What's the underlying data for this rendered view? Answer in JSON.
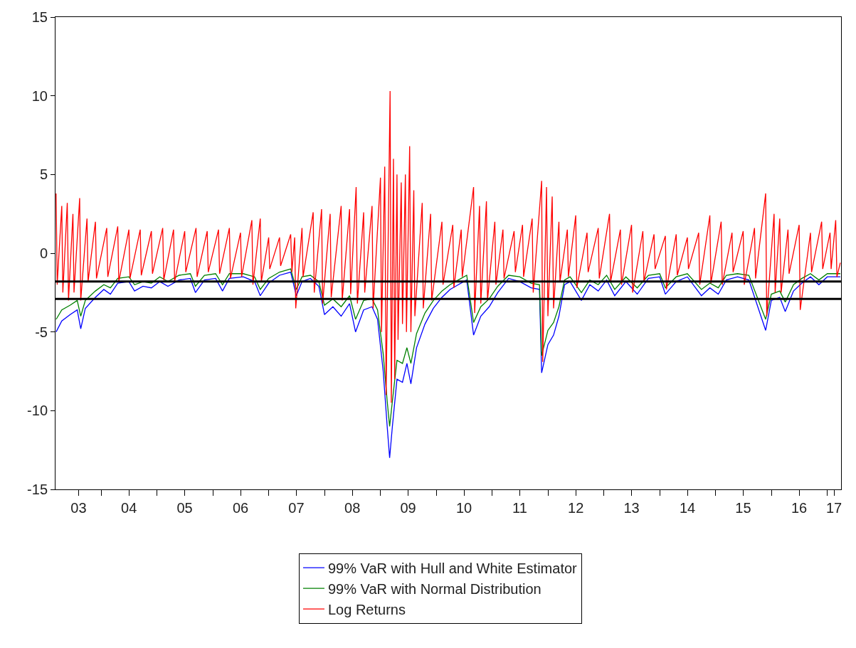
{
  "chart_data": {
    "type": "line",
    "legend": "bottom",
    "grid": false,
    "marker": "none",
    "line_style": "solid",
    "xlim": [
      "2003-03-09",
      "2017-04-01"
    ],
    "xticks": [
      {
        "value": "2003-08-07",
        "label": "03"
      },
      {
        "value": "2004-07-01",
        "label": "04"
      },
      {
        "value": "2005-07-01",
        "label": "05"
      },
      {
        "value": "2006-07-01",
        "label": "06"
      },
      {
        "value": "2007-07-01",
        "label": "07"
      },
      {
        "value": "2008-07-01",
        "label": "08"
      },
      {
        "value": "2009-07-01",
        "label": "09"
      },
      {
        "value": "2010-07-01",
        "label": "10"
      },
      {
        "value": "2011-07-01",
        "label": "11"
      },
      {
        "value": "2012-07-01",
        "label": "12"
      },
      {
        "value": "2013-07-01",
        "label": "13"
      },
      {
        "value": "2014-07-01",
        "label": "14"
      },
      {
        "value": "2015-07-01",
        "label": "15"
      },
      {
        "value": "2016-07-01",
        "label": "16"
      },
      {
        "value": "2017-02-14",
        "label": "17"
      },
      {
        "value": "2004-01-01",
        "label": null
      },
      {
        "value": "2005-01-01",
        "label": null
      },
      {
        "value": "2006-01-01",
        "label": null
      },
      {
        "value": "2007-01-01",
        "label": null
      },
      {
        "value": "2008-01-01",
        "label": null
      },
      {
        "value": "2009-01-01",
        "label": null
      },
      {
        "value": "2010-01-01",
        "label": null
      },
      {
        "value": "2011-01-01",
        "label": null
      },
      {
        "value": "2012-01-01",
        "label": null
      },
      {
        "value": "2013-01-01",
        "label": null
      },
      {
        "value": "2014-01-01",
        "label": null
      },
      {
        "value": "2015-01-01",
        "label": null
      },
      {
        "value": "2016-01-01",
        "label": null
      },
      {
        "value": "2017-01-01",
        "label": null
      }
    ],
    "ylim": [
      -15,
      15
    ],
    "yticks": [
      -15,
      -10,
      -5,
      0,
      5,
      10,
      15
    ],
    "ref_lines": [
      {
        "axis": "y",
        "value": -1.8,
        "color": "#000000"
      },
      {
        "axis": "y",
        "value": -2.9,
        "color": "#000000"
      }
    ],
    "series": [
      {
        "name": "99% VaR with Hull and White Estimator",
        "color": "#0000ff",
        "x": [
          "2003-03-13",
          "2003-04-19",
          "2003-06-13",
          "2003-07-29",
          "2003-08-21",
          "2003-09-20",
          "2003-11-25",
          "2004-01-19",
          "2004-03-02",
          "2004-04-19",
          "2004-07-01",
          "2004-08-07",
          "2004-10-01",
          "2004-11-25",
          "2005-01-19",
          "2005-03-13",
          "2005-05-25",
          "2005-08-07",
          "2005-09-09",
          "2005-11-07",
          "2006-01-19",
          "2006-03-05",
          "2006-04-19",
          "2006-07-19",
          "2006-10-01",
          "2006-11-07",
          "2007-01-01",
          "2007-03-13",
          "2007-05-25",
          "2007-07-01",
          "2007-08-07",
          "2007-10-01",
          "2007-11-25",
          "2008-01-01",
          "2008-02-25",
          "2008-04-19",
          "2008-06-13",
          "2008-07-22",
          "2008-09-13",
          "2008-11-07",
          "2008-12-13",
          "2009-01-19",
          "2009-02-14",
          "2009-03-02",
          "2009-03-20",
          "2009-04-19",
          "2009-05-25",
          "2009-06-23",
          "2009-07-19",
          "2009-08-25",
          "2009-10-19",
          "2009-12-13",
          "2010-02-07",
          "2010-04-01",
          "2010-05-25",
          "2010-07-19",
          "2010-09-02",
          "2010-10-19",
          "2010-12-13",
          "2011-02-07",
          "2011-04-19",
          "2011-07-01",
          "2011-09-13",
          "2011-11-07",
          "2011-11-21",
          "2012-01-01",
          "2012-02-07",
          "2012-03-13",
          "2012-04-19",
          "2012-05-25",
          "2012-08-07",
          "2012-10-01",
          "2012-11-25",
          "2013-01-19",
          "2013-03-13",
          "2013-05-25",
          "2013-08-07",
          "2013-10-19",
          "2014-01-01",
          "2014-02-07",
          "2014-04-19",
          "2014-07-01",
          "2014-10-01",
          "2014-11-25",
          "2015-01-19",
          "2015-03-13",
          "2015-05-25",
          "2015-08-07",
          "2015-11-25",
          "2016-01-01",
          "2016-02-25",
          "2016-04-01",
          "2016-05-25",
          "2016-07-19",
          "2016-09-13",
          "2016-11-07",
          "2017-01-01",
          "2017-03-27"
        ],
        "values": [
          -5.0,
          -4.3,
          -3.9,
          -3.6,
          -4.8,
          -3.5,
          -2.8,
          -2.3,
          -2.6,
          -1.9,
          -1.8,
          -2.4,
          -2.1,
          -2.2,
          -1.8,
          -2.1,
          -1.7,
          -1.6,
          -2.5,
          -1.7,
          -1.6,
          -2.4,
          -1.6,
          -1.5,
          -1.8,
          -2.7,
          -1.9,
          -1.4,
          -1.2,
          -2.7,
          -1.8,
          -1.6,
          -2.1,
          -3.9,
          -3.4,
          -4.0,
          -3.2,
          -5.0,
          -3.6,
          -3.4,
          -4.2,
          -7.5,
          -11.0,
          -13.0,
          -11.0,
          -8.0,
          -8.2,
          -7.0,
          -8.3,
          -6.0,
          -4.5,
          -3.5,
          -2.8,
          -2.3,
          -2.0,
          -1.7,
          -5.2,
          -4.0,
          -3.4,
          -2.5,
          -1.6,
          -1.8,
          -2.2,
          -2.3,
          -7.6,
          -5.8,
          -5.2,
          -4.0,
          -2.0,
          -1.8,
          -3.0,
          -2.0,
          -2.4,
          -1.7,
          -2.7,
          -1.8,
          -2.6,
          -1.6,
          -1.5,
          -2.6,
          -1.8,
          -1.5,
          -2.7,
          -2.2,
          -2.6,
          -1.7,
          -1.5,
          -1.7,
          -4.9,
          -3.0,
          -2.8,
          -3.7,
          -2.4,
          -1.9,
          -1.5,
          -2.0,
          -1.5,
          -1.5
        ]
      },
      {
        "name": "99% VaR with Normal Distribution",
        "color": "#008000",
        "x": [
          "2003-03-13",
          "2003-04-19",
          "2003-06-13",
          "2003-07-29",
          "2003-08-21",
          "2003-09-20",
          "2003-11-25",
          "2004-01-19",
          "2004-03-02",
          "2004-04-19",
          "2004-07-01",
          "2004-08-07",
          "2004-10-01",
          "2004-11-25",
          "2005-01-19",
          "2005-03-13",
          "2005-05-25",
          "2005-08-07",
          "2005-09-09",
          "2005-11-07",
          "2006-01-19",
          "2006-03-05",
          "2006-04-19",
          "2006-07-19",
          "2006-10-01",
          "2006-11-07",
          "2007-01-01",
          "2007-03-13",
          "2007-05-25",
          "2007-07-01",
          "2007-08-07",
          "2007-10-01",
          "2007-11-25",
          "2008-01-01",
          "2008-02-25",
          "2008-04-19",
          "2008-06-13",
          "2008-07-22",
          "2008-09-13",
          "2008-11-07",
          "2008-12-13",
          "2009-01-19",
          "2009-02-14",
          "2009-03-02",
          "2009-03-20",
          "2009-04-19",
          "2009-05-25",
          "2009-06-23",
          "2009-07-19",
          "2009-08-25",
          "2009-10-19",
          "2009-12-13",
          "2010-02-07",
          "2010-04-01",
          "2010-05-25",
          "2010-07-19",
          "2010-09-02",
          "2010-10-19",
          "2010-12-13",
          "2011-02-07",
          "2011-04-19",
          "2011-07-01",
          "2011-09-13",
          "2011-11-07",
          "2011-11-21",
          "2012-01-01",
          "2012-02-07",
          "2012-03-13",
          "2012-04-19",
          "2012-05-25",
          "2012-08-07",
          "2012-10-01",
          "2012-11-25",
          "2013-01-19",
          "2013-03-13",
          "2013-05-25",
          "2013-08-07",
          "2013-10-19",
          "2014-01-01",
          "2014-02-07",
          "2014-04-19",
          "2014-07-01",
          "2014-10-01",
          "2014-11-25",
          "2015-01-19",
          "2015-03-13",
          "2015-05-25",
          "2015-08-07",
          "2015-11-25",
          "2016-01-01",
          "2016-02-25",
          "2016-04-01",
          "2016-05-25",
          "2016-07-19",
          "2016-09-13",
          "2016-11-07",
          "2017-01-01",
          "2017-03-27"
        ],
        "values": [
          -4.2,
          -3.6,
          -3.3,
          -3.0,
          -4.0,
          -3.0,
          -2.4,
          -2.0,
          -2.2,
          -1.6,
          -1.5,
          -2.0,
          -1.8,
          -1.9,
          -1.5,
          -1.8,
          -1.4,
          -1.3,
          -2.1,
          -1.4,
          -1.3,
          -2.0,
          -1.3,
          -1.3,
          -1.5,
          -2.3,
          -1.6,
          -1.2,
          -1.0,
          -2.3,
          -1.5,
          -1.4,
          -1.8,
          -3.3,
          -2.9,
          -3.4,
          -2.7,
          -4.2,
          -3.0,
          -2.9,
          -3.6,
          -6.4,
          -9.4,
          -11.0,
          -9.4,
          -6.8,
          -7.0,
          -6.0,
          -7.0,
          -5.1,
          -3.8,
          -3.0,
          -2.4,
          -2.0,
          -1.7,
          -1.4,
          -4.4,
          -3.4,
          -2.9,
          -2.1,
          -1.4,
          -1.5,
          -1.9,
          -2.0,
          -6.5,
          -4.9,
          -4.4,
          -3.4,
          -1.7,
          -1.5,
          -2.5,
          -1.7,
          -2.0,
          -1.4,
          -2.3,
          -1.5,
          -2.2,
          -1.4,
          -1.3,
          -2.2,
          -1.5,
          -1.3,
          -2.3,
          -1.9,
          -2.2,
          -1.4,
          -1.3,
          -1.4,
          -4.2,
          -2.6,
          -2.4,
          -3.1,
          -2.0,
          -1.6,
          -1.3,
          -1.7,
          -1.3,
          -1.3
        ]
      },
      {
        "name": "Log Returns",
        "color": "#ff0000",
        "x": [
          "2003-03-13",
          "2003-03-20",
          "2003-04-19",
          "2003-04-26",
          "2003-05-25",
          "2003-06-02",
          "2003-07-01",
          "2003-07-08",
          "2003-08-14",
          "2003-08-21",
          "2003-10-01",
          "2003-10-08",
          "2003-11-25",
          "2003-12-02",
          "2004-02-07",
          "2004-02-14",
          "2004-04-19",
          "2004-04-26",
          "2004-07-01",
          "2004-07-08",
          "2004-09-13",
          "2004-09-20",
          "2004-11-25",
          "2004-12-02",
          "2005-02-07",
          "2005-02-14",
          "2005-04-19",
          "2005-04-26",
          "2005-07-01",
          "2005-07-08",
          "2005-09-13",
          "2005-09-20",
          "2005-11-25",
          "2005-12-02",
          "2006-02-07",
          "2006-02-14",
          "2006-04-19",
          "2006-04-26",
          "2006-07-01",
          "2006-07-08",
          "2006-09-13",
          "2006-09-20",
          "2006-11-07",
          "2006-11-14",
          "2007-01-01",
          "2007-01-08",
          "2007-03-13",
          "2007-03-20",
          "2007-05-25",
          "2007-06-02",
          "2007-06-20",
          "2007-06-27",
          "2007-08-07",
          "2007-08-14",
          "2007-10-19",
          "2007-10-26",
          "2007-12-13",
          "2007-12-20",
          "2008-02-07",
          "2008-02-14",
          "2008-04-19",
          "2008-04-26",
          "2008-06-13",
          "2008-06-20",
          "2008-07-26",
          "2008-08-03",
          "2008-09-13",
          "2008-09-20",
          "2008-11-07",
          "2008-11-14",
          "2009-01-01",
          "2009-01-08",
          "2009-01-29",
          "2009-02-07",
          "2009-03-05",
          "2009-03-13",
          "2009-03-27",
          "2009-04-04",
          "2009-04-19",
          "2009-04-26",
          "2009-05-17",
          "2009-05-25",
          "2009-06-13",
          "2009-06-20",
          "2009-07-11",
          "2009-07-19",
          "2009-08-07",
          "2009-08-14",
          "2009-10-01",
          "2009-10-08",
          "2009-11-25",
          "2009-12-02",
          "2010-02-07",
          "2010-02-14",
          "2010-04-19",
          "2010-04-26",
          "2010-06-13",
          "2010-06-20",
          "2010-09-02",
          "2010-09-09",
          "2010-10-11",
          "2010-10-19",
          "2010-11-25",
          "2010-12-02",
          "2011-01-19",
          "2011-01-26",
          "2011-03-13",
          "2011-03-20",
          "2011-05-25",
          "2011-06-02",
          "2011-07-19",
          "2011-07-26",
          "2011-09-20",
          "2011-09-27",
          "2011-11-21",
          "2011-11-28",
          "2011-12-23",
          "2012-01-01",
          "2012-01-29",
          "2012-02-07",
          "2012-03-13",
          "2012-03-20",
          "2012-05-07",
          "2012-05-14",
          "2012-07-01",
          "2012-07-08",
          "2012-09-13",
          "2012-09-20",
          "2012-11-25",
          "2012-12-02",
          "2013-02-07",
          "2013-02-14",
          "2013-04-19",
          "2013-04-26",
          "2013-07-01",
          "2013-07-08",
          "2013-09-13",
          "2013-09-20",
          "2013-11-25",
          "2013-12-02",
          "2014-02-07",
          "2014-02-14",
          "2014-04-19",
          "2014-04-26",
          "2014-07-01",
          "2014-07-08",
          "2014-09-13",
          "2014-09-20",
          "2014-11-25",
          "2014-12-02",
          "2015-02-07",
          "2015-02-14",
          "2015-04-19",
          "2015-04-26",
          "2015-07-01",
          "2015-07-08",
          "2015-09-13",
          "2015-09-20",
          "2015-11-25",
          "2015-12-02",
          "2016-01-19",
          "2016-01-26",
          "2016-02-25",
          "2016-03-05",
          "2016-04-19",
          "2016-04-26",
          "2016-07-01",
          "2016-07-08",
          "2016-09-13",
          "2016-09-20",
          "2016-11-25",
          "2016-12-02",
          "2017-01-19",
          "2017-01-26",
          "2017-02-25",
          "2017-03-05",
          "2017-03-27"
        ],
        "values": [
          3.8,
          -2.0,
          3.0,
          -2.5,
          3.2,
          -3.0,
          2.5,
          -2.5,
          3.5,
          -3.0,
          2.2,
          -1.8,
          2.0,
          -1.6,
          1.6,
          -1.5,
          1.7,
          -1.8,
          1.5,
          -1.6,
          1.5,
          -1.4,
          1.4,
          -1.3,
          1.6,
          -1.7,
          1.5,
          -1.8,
          1.4,
          -1.2,
          1.6,
          -1.5,
          1.4,
          -1.2,
          1.5,
          -1.3,
          1.6,
          -1.6,
          1.3,
          -1.5,
          2.1,
          -2.0,
          2.2,
          -1.8,
          1.0,
          -1.0,
          1.0,
          -0.8,
          1.2,
          -1.2,
          1.0,
          -3.5,
          1.6,
          -1.5,
          2.6,
          -2.5,
          2.8,
          -3.2,
          2.5,
          -2.8,
          3.0,
          -3.0,
          2.8,
          -2.6,
          4.2,
          -3.2,
          2.6,
          -2.5,
          3.0,
          -3.5,
          4.8,
          -5.0,
          5.5,
          -9.0,
          10.3,
          -9.5,
          6.0,
          -8.0,
          5.0,
          -5.5,
          4.5,
          -4.5,
          5.0,
          -5.0,
          6.8,
          -5.0,
          4.0,
          -4.0,
          3.2,
          -3.5,
          2.5,
          -3.0,
          2.0,
          -2.0,
          1.8,
          -2.2,
          1.5,
          -1.5,
          4.2,
          -3.8,
          3.0,
          -3.2,
          3.3,
          -3.0,
          2.0,
          -2.0,
          1.5,
          -1.6,
          1.4,
          -1.2,
          1.8,
          -1.5,
          2.2,
          -2.5,
          4.6,
          -6.9,
          4.2,
          -4.0,
          3.6,
          -3.5,
          2.0,
          -1.8,
          1.5,
          -1.5,
          2.4,
          -2.2,
          1.3,
          -1.2,
          1.6,
          -1.6,
          2.5,
          -1.8,
          1.5,
          -2.0,
          1.8,
          -2.5,
          1.4,
          -1.8,
          1.2,
          -1.0,
          1.1,
          -2.3,
          1.2,
          -1.4,
          1.0,
          -1.0,
          1.3,
          -2.0,
          2.4,
          -1.9,
          2.0,
          -2.0,
          1.3,
          -1.2,
          1.4,
          -2.0,
          1.6,
          -1.6,
          3.8,
          -4.0,
          2.5,
          -2.5,
          2.2,
          -2.5,
          1.5,
          -1.3,
          1.8,
          -3.6,
          1.3,
          -1.2,
          2.0,
          -1.0,
          1.3,
          -1.0,
          2.1,
          -1.5,
          -0.6
        ]
      }
    ]
  }
}
